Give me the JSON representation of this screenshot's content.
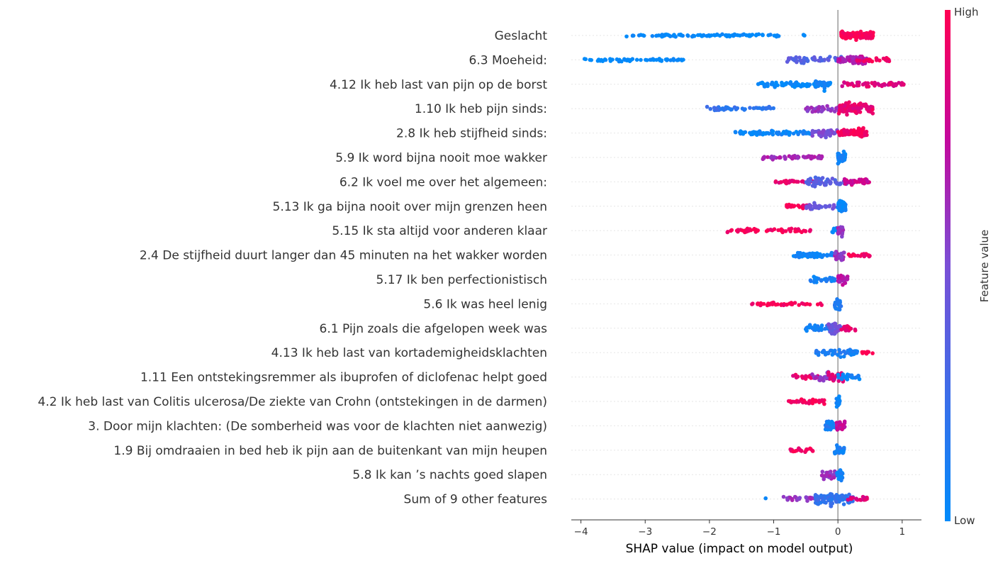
{
  "chart_data": {
    "type": "scatter",
    "subtype": "shap-beeswarm",
    "xlabel": "SHAP value (impact on model output)",
    "xlim": [
      -4.15,
      1.3
    ],
    "xticks": [
      -4,
      -3,
      -2,
      -1,
      0,
      1
    ],
    "xtick_labels": [
      "−4",
      "−3",
      "−2",
      "−1",
      "0",
      "1"
    ],
    "colorbar": {
      "label": "Feature value",
      "high": "High",
      "low": "Low",
      "colors": [
        "#008bfb",
        "#ff0052"
      ]
    },
    "features": [
      {
        "name": "Geslacht",
        "groups": [
          {
            "min": -3.3,
            "max": -0.9,
            "v": 0,
            "n": 90,
            "w": 0.03
          },
          {
            "min": -0.55,
            "max": -0.45,
            "v": 0,
            "n": 3,
            "w": 0.02
          },
          {
            "min": 0.05,
            "max": 0.55,
            "v": 1,
            "n": 150,
            "w": 0.3
          }
        ]
      },
      {
        "name": "6.3 Moeheid:",
        "groups": [
          {
            "min": -3.95,
            "max": -2.4,
            "v": 0,
            "n": 55,
            "w": 0.05
          },
          {
            "min": -0.8,
            "max": 0.1,
            "v": 0.35,
            "n": 60,
            "w": 0.25
          },
          {
            "min": 0.0,
            "max": 0.45,
            "v": 0.7,
            "n": 60,
            "w": 0.35
          },
          {
            "min": 0.3,
            "max": 0.8,
            "v": 0.95,
            "n": 25,
            "w": 0.12
          }
        ]
      },
      {
        "name": "4.12 Ik heb last van pijn op de borst",
        "groups": [
          {
            "min": -1.25,
            "max": -0.1,
            "v": 0,
            "n": 80,
            "w": 0.2
          },
          {
            "min": -0.35,
            "max": -0.2,
            "v": 0.05,
            "n": 20,
            "w": 0.7
          },
          {
            "min": 0.05,
            "max": 1.05,
            "v": 0.85,
            "n": 55,
            "w": 0.18
          }
        ]
      },
      {
        "name": "1.10 Ik heb pijn sinds:",
        "groups": [
          {
            "min": -2.1,
            "max": -1.0,
            "v": 0.2,
            "n": 45,
            "w": 0.1
          },
          {
            "min": -0.5,
            "max": 0.1,
            "v": 0.6,
            "n": 40,
            "w": 0.25
          },
          {
            "min": 0.0,
            "max": 0.55,
            "v": 0.9,
            "n": 90,
            "w": 0.5
          }
        ]
      },
      {
        "name": "2.8 Ik heb stijfheid sinds:",
        "groups": [
          {
            "min": -1.6,
            "max": -0.4,
            "v": 0.05,
            "n": 65,
            "w": 0.12
          },
          {
            "min": -0.4,
            "max": 0.0,
            "v": 0.5,
            "n": 40,
            "w": 0.3
          },
          {
            "min": 0.0,
            "max": 0.45,
            "v": 0.95,
            "n": 75,
            "w": 0.45
          }
        ]
      },
      {
        "name": "5.9 Ik word bijna nooit moe wakker",
        "groups": [
          {
            "min": -1.2,
            "max": -0.25,
            "v": 0.65,
            "n": 55,
            "w": 0.12
          },
          {
            "min": 0.0,
            "max": 0.12,
            "v": 0.05,
            "n": 60,
            "w": 0.55
          }
        ]
      },
      {
        "name": "6.2 Ik voel me over het algemeen:",
        "groups": [
          {
            "min": -1.0,
            "max": -0.3,
            "v": 0.9,
            "n": 35,
            "w": 0.12
          },
          {
            "min": -0.5,
            "max": 0.15,
            "v": 0.35,
            "n": 60,
            "w": 0.4
          },
          {
            "min": 0.1,
            "max": 0.5,
            "v": 0.8,
            "n": 40,
            "w": 0.2
          }
        ]
      },
      {
        "name": "5.13 Ik ga bijna nooit over mijn grenzen heen",
        "groups": [
          {
            "min": -0.8,
            "max": -0.45,
            "v": 0.95,
            "n": 25,
            "w": 0.12
          },
          {
            "min": -0.5,
            "max": -0.05,
            "v": 0.45,
            "n": 30,
            "w": 0.25
          },
          {
            "min": 0.0,
            "max": 0.12,
            "v": 0.05,
            "n": 55,
            "w": 0.6
          }
        ]
      },
      {
        "name": "5.15 Ik sta altijd voor anderen klaar",
        "groups": [
          {
            "min": -1.75,
            "max": -0.4,
            "v": 0.97,
            "n": 60,
            "w": 0.1
          },
          {
            "min": -0.1,
            "max": 0.0,
            "v": 0.05,
            "n": 8,
            "w": 0.3
          },
          {
            "min": 0.0,
            "max": 0.08,
            "v": 0.6,
            "n": 40,
            "w": 0.5
          }
        ]
      },
      {
        "name": "2.4 De stijfheid duurt langer dan 45 minuten na het wakker worden",
        "groups": [
          {
            "min": -0.7,
            "max": -0.05,
            "v": 0.05,
            "n": 60,
            "w": 0.25
          },
          {
            "min": -0.05,
            "max": 0.1,
            "v": 0.6,
            "n": 25,
            "w": 0.5
          },
          {
            "min": 0.15,
            "max": 0.5,
            "v": 0.95,
            "n": 20,
            "w": 0.15
          }
        ]
      },
      {
        "name": "5.17 Ik ben perfectionistisch",
        "groups": [
          {
            "min": -0.45,
            "max": -0.05,
            "v": 0.08,
            "n": 35,
            "w": 0.2
          },
          {
            "min": 0.0,
            "max": 0.15,
            "v": 0.7,
            "n": 30,
            "w": 0.45
          }
        ]
      },
      {
        "name": "5.6 Ik was heel lenig",
        "groups": [
          {
            "min": -1.4,
            "max": -0.25,
            "v": 0.97,
            "n": 40,
            "w": 0.1
          },
          {
            "min": -0.05,
            "max": 0.05,
            "v": 0.1,
            "n": 25,
            "w": 0.5
          }
        ]
      },
      {
        "name": "6.1 Pijn zoals die afgelopen week was",
        "groups": [
          {
            "min": -0.5,
            "max": -0.1,
            "v": 0.1,
            "n": 35,
            "w": 0.25
          },
          {
            "min": -0.15,
            "max": 0.05,
            "v": 0.45,
            "n": 35,
            "w": 0.55
          },
          {
            "min": 0.05,
            "max": 0.3,
            "v": 0.9,
            "n": 25,
            "w": 0.2
          }
        ]
      },
      {
        "name": "4.13 Ik heb last van kortademigheidsklachten",
        "groups": [
          {
            "min": -0.35,
            "max": 0.3,
            "v": 0.1,
            "n": 55,
            "w": 0.3
          },
          {
            "min": 0.35,
            "max": 0.55,
            "v": 0.97,
            "n": 10,
            "w": 0.1
          }
        ]
      },
      {
        "name": "1.11 Een ontstekingsremmer als ibuprofen of diclofenac helpt goed",
        "groups": [
          {
            "min": -0.7,
            "max": -0.3,
            "v": 0.9,
            "n": 15,
            "w": 0.12
          },
          {
            "min": -0.4,
            "max": -0.05,
            "v": 0.6,
            "n": 30,
            "w": 0.4
          },
          {
            "min": -0.15,
            "max": 0.1,
            "v": 0.85,
            "n": 20,
            "w": 0.6
          },
          {
            "min": 0.0,
            "max": 0.35,
            "v": 0.05,
            "n": 20,
            "w": 0.2
          }
        ]
      },
      {
        "name": "4.2 Ik heb last van Colitis ulcerosa/De ziekte van Crohn (ontstekingen in de darmen)",
        "groups": [
          {
            "min": -0.8,
            "max": -0.2,
            "v": 0.97,
            "n": 35,
            "w": 0.15
          },
          {
            "min": -0.03,
            "max": 0.03,
            "v": 0.05,
            "n": 30,
            "w": 0.6
          }
        ]
      },
      {
        "name": "3. Door mijn klachten: (De somberheid was voor de klachten niet aanwezig)",
        "groups": [
          {
            "min": -0.2,
            "max": -0.02,
            "v": 0.1,
            "n": 30,
            "w": 0.5
          },
          {
            "min": -0.02,
            "max": 0.12,
            "v": 0.75,
            "n": 30,
            "w": 0.5
          }
        ]
      },
      {
        "name": "1.9 Bij omdraaien in bed heb ik pijn aan de buitenkant van mijn heupen",
        "groups": [
          {
            "min": -0.75,
            "max": -0.35,
            "v": 0.97,
            "n": 20,
            "w": 0.12
          },
          {
            "min": -0.05,
            "max": 0.1,
            "v": 0.1,
            "n": 25,
            "w": 0.45
          }
        ]
      },
      {
        "name": "5.8 Ik kan ’s nachts goed slapen",
        "groups": [
          {
            "min": -0.25,
            "max": -0.02,
            "v": 0.6,
            "n": 25,
            "w": 0.35
          },
          {
            "min": -0.02,
            "max": 0.08,
            "v": 0.05,
            "n": 25,
            "w": 0.55
          }
        ]
      },
      {
        "name": "Sum of 9 other features",
        "groups": [
          {
            "min": -1.15,
            "max": -1.1,
            "v": 0.05,
            "n": 1,
            "w": 0.02
          },
          {
            "min": -0.85,
            "max": -0.2,
            "v": 0.6,
            "n": 30,
            "w": 0.2
          },
          {
            "min": -0.35,
            "max": 0.25,
            "v": 0.2,
            "n": 90,
            "w": 0.6
          },
          {
            "min": 0.15,
            "max": 0.48,
            "v": 0.85,
            "n": 20,
            "w": 0.15
          }
        ]
      }
    ]
  }
}
